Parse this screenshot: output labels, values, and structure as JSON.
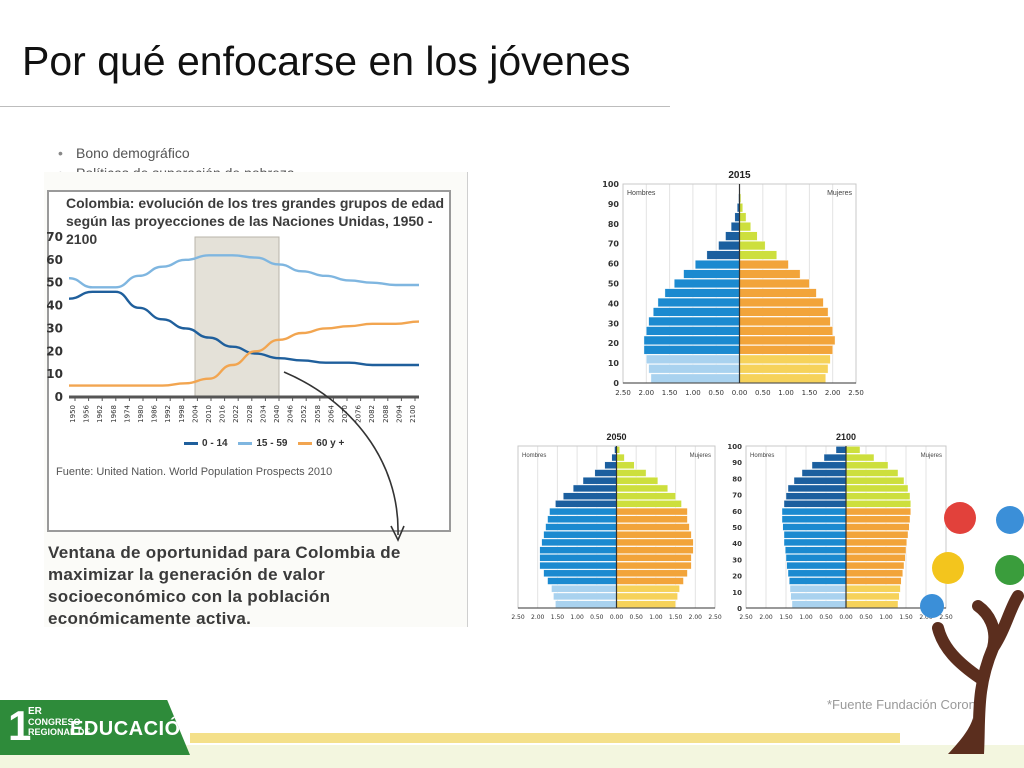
{
  "slide": {
    "title": "Por qué enfocarse en los jóvenes",
    "bullets": [
      "Bono demográfico",
      "Políticas de superación de pobreza"
    ],
    "footnote": "*Fuente Fundación Corona"
  },
  "figure": {
    "chart_title_line1": "Colombia: evolución de los tres grandes grupos de edad",
    "chart_title_line2": "según las proyecciones de las Naciones Unidas, 1950 - 2100",
    "source": "Fuente: United Nation. World Population Prospects 2010",
    "caption": "Ventana de oportunidad para Colombia de maximizar la generación de valor socioeconómico con la población económicamente activa."
  },
  "chart_data": [
    {
      "type": "line",
      "title": "Colombia: evolución de los tres grandes grupos de edad según las proyecciones de las Naciones Unidas, 1950 - 2100",
      "ylim": [
        0,
        70
      ],
      "yticks": [
        0,
        10,
        20,
        30,
        40,
        50,
        60,
        70
      ],
      "xticks": [
        "1950",
        "1956",
        "1962",
        "1968",
        "1974",
        "1980",
        "1986",
        "1992",
        "1998",
        "2004",
        "2010",
        "2016",
        "2022",
        "2028",
        "2034",
        "2040",
        "2046",
        "2052",
        "2058",
        "2064",
        "2070",
        "2076",
        "2082",
        "2088",
        "2094",
        "2100"
      ],
      "x": [
        1950,
        1960,
        1970,
        1980,
        1990,
        2000,
        2010,
        2020,
        2030,
        2040,
        2050,
        2060,
        2070,
        2080,
        2090,
        2100
      ],
      "series": [
        {
          "name": "0 - 14",
          "color": "#1f5f9c",
          "values": [
            43,
            46,
            46,
            39,
            34,
            30,
            26,
            22,
            19,
            17,
            16,
            15,
            15,
            14,
            14,
            14
          ]
        },
        {
          "name": "15 - 59",
          "color": "#7fb6e0",
          "values": [
            52,
            48,
            48,
            53,
            57,
            60,
            62,
            62,
            61,
            58,
            55,
            53,
            51,
            50,
            49,
            49
          ]
        },
        {
          "name": "60 y +",
          "color": "#f2a550",
          "values": [
            5,
            5,
            5,
            5,
            5,
            6,
            8,
            14,
            20,
            25,
            28,
            30,
            31,
            32,
            32,
            33
          ]
        }
      ],
      "highlight_range": [
        2004,
        2040
      ],
      "legend_position": "bottom"
    },
    {
      "type": "bar",
      "title": "2015",
      "subtype": "population-pyramid",
      "left_label": "Hombres",
      "right_label": "Mujeres",
      "categories": [
        "0",
        "5",
        "10",
        "15",
        "20",
        "25",
        "30",
        "35",
        "40",
        "45",
        "50",
        "55",
        "60",
        "65",
        "70",
        "75",
        "80",
        "85",
        "90",
        "95",
        "100"
      ],
      "yticks": [
        "0",
        "10",
        "20",
        "30",
        "40",
        "50",
        "60",
        "70",
        "80",
        "90",
        "100"
      ],
      "xticks": [
        "2.50",
        "2.00",
        "1.50",
        "1.00",
        "0.50",
        "0.00",
        "0.50",
        "1.00",
        "1.50",
        "2.00",
        "2.50"
      ],
      "series": [
        {
          "name": "Hombres",
          "values": [
            1.9,
            1.95,
            2.0,
            2.05,
            2.05,
            2.0,
            1.95,
            1.85,
            1.75,
            1.6,
            1.4,
            1.2,
            0.95,
            0.7,
            0.45,
            0.3,
            0.18,
            0.1,
            0.05,
            0.02,
            0.01
          ]
        },
        {
          "name": "Mujeres",
          "values": [
            1.85,
            1.9,
            1.95,
            2.0,
            2.05,
            2.0,
            1.95,
            1.9,
            1.8,
            1.65,
            1.5,
            1.3,
            1.05,
            0.8,
            0.55,
            0.38,
            0.24,
            0.14,
            0.07,
            0.03,
            0.01
          ]
        }
      ]
    },
    {
      "type": "bar",
      "title": "2050",
      "subtype": "population-pyramid",
      "left_label": "Hombres",
      "right_label": "Mujeres",
      "categories": [
        "0",
        "5",
        "10",
        "15",
        "20",
        "25",
        "30",
        "35",
        "40",
        "45",
        "50",
        "55",
        "60",
        "65",
        "70",
        "75",
        "80",
        "85",
        "90",
        "95",
        "100"
      ],
      "xticks": [
        "2.50",
        "2.00",
        "1.50",
        "1.00",
        "0.50",
        "0.00",
        "0.50",
        "1.00",
        "1.50",
        "2.00",
        "2.50"
      ],
      "series": [
        {
          "name": "Hombres",
          "values": [
            1.55,
            1.6,
            1.65,
            1.75,
            1.85,
            1.95,
            1.95,
            1.95,
            1.9,
            1.85,
            1.8,
            1.75,
            1.7,
            1.55,
            1.35,
            1.1,
            0.85,
            0.55,
            0.3,
            0.12,
            0.05
          ]
        },
        {
          "name": "Mujeres",
          "values": [
            1.5,
            1.55,
            1.6,
            1.7,
            1.8,
            1.9,
            1.9,
            1.95,
            1.95,
            1.9,
            1.85,
            1.8,
            1.8,
            1.65,
            1.5,
            1.3,
            1.05,
            0.75,
            0.45,
            0.2,
            0.08
          ]
        }
      ]
    },
    {
      "type": "bar",
      "title": "2100",
      "subtype": "population-pyramid",
      "left_label": "Hombres",
      "right_label": "Mujeres",
      "categories": [
        "0",
        "5",
        "10",
        "15",
        "20",
        "25",
        "30",
        "35",
        "40",
        "45",
        "50",
        "55",
        "60",
        "65",
        "70",
        "75",
        "80",
        "85",
        "90",
        "95",
        "100"
      ],
      "yticks": [
        "0",
        "10",
        "20",
        "30",
        "40",
        "50",
        "60",
        "70",
        "80",
        "90",
        "100"
      ],
      "xticks": [
        "2.50",
        "2.00",
        "1.50",
        "1.00",
        "0.50",
        "0.00",
        "0.50",
        "1.00",
        "1.50",
        "2.00",
        "2.50"
      ],
      "series": [
        {
          "name": "Hombres",
          "values": [
            1.35,
            1.38,
            1.4,
            1.42,
            1.45,
            1.48,
            1.5,
            1.52,
            1.55,
            1.55,
            1.58,
            1.6,
            1.6,
            1.55,
            1.5,
            1.45,
            1.3,
            1.1,
            0.85,
            0.55,
            0.25
          ]
        },
        {
          "name": "Mujeres",
          "values": [
            1.3,
            1.33,
            1.36,
            1.38,
            1.42,
            1.45,
            1.48,
            1.5,
            1.52,
            1.55,
            1.58,
            1.6,
            1.62,
            1.62,
            1.6,
            1.55,
            1.45,
            1.3,
            1.05,
            0.7,
            0.35
          ]
        }
      ]
    }
  ]
}
